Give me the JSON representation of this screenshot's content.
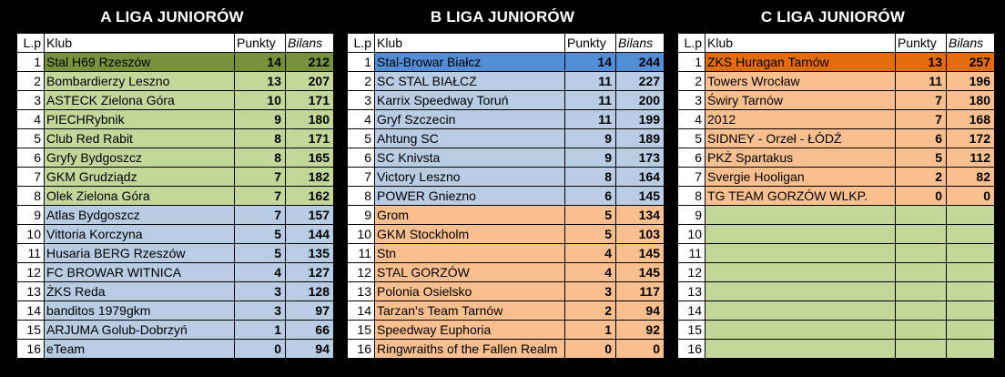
{
  "headers": {
    "lp": "L.p",
    "club": "Klub",
    "points": "Punkty",
    "balance": "Bilans"
  },
  "zone_colors": {
    "lead_green": "#76923c",
    "green": "#c4d79b",
    "blue": "#b8cce4",
    "orange": "#fabf8f",
    "lead_blue": "#538dd5",
    "lead_orange": "#e26b0a"
  },
  "leagues": [
    {
      "title": "A LIGA JUNIORÓW",
      "rows": [
        {
          "lp": "1",
          "club": "Stal H69 Rzeszów",
          "points": "14",
          "balance": "212",
          "zone": "lead_green"
        },
        {
          "lp": "2",
          "club": "Bombardierzy Leszno",
          "points": "13",
          "balance": "207",
          "zone": "green"
        },
        {
          "lp": "3",
          "club": "ASTECK Zielona Góra",
          "points": "10",
          "balance": "171",
          "zone": "green"
        },
        {
          "lp": "4",
          "club": "PIECHRybnik",
          "points": "9",
          "balance": "180",
          "zone": "green"
        },
        {
          "lp": "5",
          "club": "Club Red Rabit",
          "points": "8",
          "balance": "171",
          "zone": "green"
        },
        {
          "lp": "6",
          "club": "Gryfy Bydgoszcz",
          "points": "8",
          "balance": "165",
          "zone": "green"
        },
        {
          "lp": "7",
          "club": "GKM Grudziądz",
          "points": "7",
          "balance": "182",
          "zone": "green"
        },
        {
          "lp": "8",
          "club": "Olek Zielona Góra",
          "points": "7",
          "balance": "162",
          "zone": "green"
        },
        {
          "lp": "9",
          "club": "Atlas Bydgoszcz",
          "points": "7",
          "balance": "157",
          "zone": "blue"
        },
        {
          "lp": "10",
          "club": "Vittoria Korczyna",
          "points": "5",
          "balance": "144",
          "zone": "blue"
        },
        {
          "lp": "11",
          "club": "Husaria BERG Rzeszów",
          "points": "5",
          "balance": "135",
          "zone": "blue"
        },
        {
          "lp": "12",
          "club": "FC BROWAR WITNICA",
          "points": "4",
          "balance": "127",
          "zone": "blue"
        },
        {
          "lp": "13",
          "club": "ŻKS Reda",
          "points": "3",
          "balance": "128",
          "zone": "blue"
        },
        {
          "lp": "14",
          "club": "banditos 1979gkm",
          "points": "3",
          "balance": "97",
          "zone": "blue"
        },
        {
          "lp": "15",
          "club": "ARJUMA Golub-Dobrzyń",
          "points": "1",
          "balance": "66",
          "zone": "blue"
        },
        {
          "lp": "16",
          "club": "eTeam",
          "points": "0",
          "balance": "94",
          "zone": "blue"
        }
      ]
    },
    {
      "title": "B LIGA JUNIORÓW",
      "rows": [
        {
          "lp": "1",
          "club": "Stal-Browar Białcz",
          "points": "14",
          "balance": "244",
          "zone": "lead_blue"
        },
        {
          "lp": "2",
          "club": "SC STAL BIAŁCZ",
          "points": "11",
          "balance": "227",
          "zone": "blue"
        },
        {
          "lp": "3",
          "club": "Karrix Speedway Toruń",
          "points": "11",
          "balance": "200",
          "zone": "blue"
        },
        {
          "lp": "4",
          "club": "Gryf Szczecin",
          "points": "11",
          "balance": "199",
          "zone": "blue"
        },
        {
          "lp": "5",
          "club": "Ahtung SC",
          "points": "9",
          "balance": "189",
          "zone": "blue"
        },
        {
          "lp": "6",
          "club": "SC Knivsta",
          "points": "9",
          "balance": "173",
          "zone": "blue"
        },
        {
          "lp": "7",
          "club": "Victory Leszno",
          "points": "8",
          "balance": "164",
          "zone": "blue"
        },
        {
          "lp": "8",
          "club": "POWER Gniezno",
          "points": "6",
          "balance": "145",
          "zone": "blue"
        },
        {
          "lp": "9",
          "club": "Grom",
          "points": "5",
          "balance": "134",
          "zone": "orange"
        },
        {
          "lp": "10",
          "club": "GKM Stockholm",
          "points": "5",
          "balance": "103",
          "zone": "orange"
        },
        {
          "lp": "11",
          "club": "Stn",
          "points": "4",
          "balance": "145",
          "zone": "orange"
        },
        {
          "lp": "12",
          "club": "STAL GORZÓW",
          "points": "4",
          "balance": "145",
          "zone": "orange"
        },
        {
          "lp": "13",
          "club": "Polonia Osielsko",
          "points": "3",
          "balance": "117",
          "zone": "orange"
        },
        {
          "lp": "14",
          "club": "Tarzan's Team Tarnów",
          "points": "2",
          "balance": "94",
          "zone": "orange"
        },
        {
          "lp": "15",
          "club": "Speedway Euphoria",
          "points": "1",
          "balance": "92",
          "zone": "orange"
        },
        {
          "lp": "16",
          "club": "Ringwraiths of the Fallen Realm",
          "points": "0",
          "balance": "0",
          "zone": "orange"
        }
      ]
    },
    {
      "title": "C LIGA JUNIORÓW",
      "rows": [
        {
          "lp": "1",
          "club": "ZKS Huragan Tarnów",
          "points": "13",
          "balance": "257",
          "zone": "lead_orange"
        },
        {
          "lp": "2",
          "club": "Towers Wrocław",
          "points": "11",
          "balance": "196",
          "zone": "orange"
        },
        {
          "lp": "3",
          "club": "Świry Tarnów",
          "points": "7",
          "balance": "180",
          "zone": "orange"
        },
        {
          "lp": "4",
          "club": "2012",
          "points": "7",
          "balance": "168",
          "zone": "orange"
        },
        {
          "lp": "5",
          "club": "SIDNEY - Orzeł - ŁÓDŹ",
          "points": "6",
          "balance": "172",
          "zone": "orange"
        },
        {
          "lp": "6",
          "club": "PKŻ Spartakus",
          "points": "5",
          "balance": "112",
          "zone": "orange"
        },
        {
          "lp": "7",
          "club": "Svergie Hooligan",
          "points": "2",
          "balance": "82",
          "zone": "orange"
        },
        {
          "lp": "8",
          "club": "TG TEAM GORZÓW WLKP.",
          "points": "0",
          "balance": "0",
          "zone": "orange"
        },
        {
          "lp": "9",
          "club": "",
          "points": "",
          "balance": "",
          "zone": "green"
        },
        {
          "lp": "10",
          "club": "",
          "points": "",
          "balance": "",
          "zone": "green"
        },
        {
          "lp": "11",
          "club": "",
          "points": "",
          "balance": "",
          "zone": "green"
        },
        {
          "lp": "12",
          "club": "",
          "points": "",
          "balance": "",
          "zone": "green"
        },
        {
          "lp": "13",
          "club": "",
          "points": "",
          "balance": "",
          "zone": "green"
        },
        {
          "lp": "14",
          "club": "",
          "points": "",
          "balance": "",
          "zone": "green"
        },
        {
          "lp": "15",
          "club": "",
          "points": "",
          "balance": "",
          "zone": "green"
        },
        {
          "lp": "16",
          "club": "",
          "points": "",
          "balance": "",
          "zone": "green"
        }
      ]
    }
  ]
}
